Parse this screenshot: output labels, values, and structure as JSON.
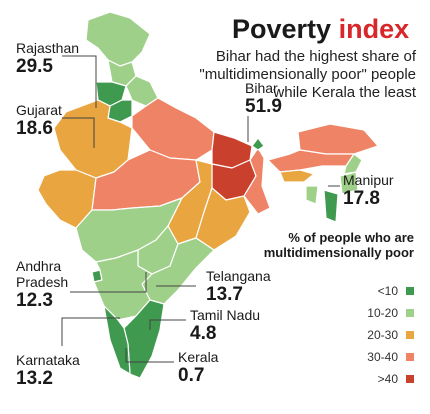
{
  "title": {
    "main": "Poverty",
    "accent": "index"
  },
  "subtitle": "Bihar had the highest share of \"multidimensionally poor\" people while Kerala the least",
  "legend": {
    "title": "% of people who are multidimensionally poor",
    "items": [
      {
        "label": "<10",
        "color": "#3f9a4f"
      },
      {
        "label": "10-20",
        "color": "#9fd08a"
      },
      {
        "label": "20-30",
        "color": "#e9a53f"
      },
      {
        "label": "30-40",
        "color": "#ee8365"
      },
      {
        "label": ">40",
        "color": "#c9402c"
      }
    ]
  },
  "states": {
    "rajasthan": {
      "name": "Rajasthan",
      "value": "29.5"
    },
    "gujarat": {
      "name": "Gujarat",
      "value": "18.6"
    },
    "bihar": {
      "name": "Bihar",
      "value": "51.9"
    },
    "manipur": {
      "name": "Manipur",
      "value": "17.8"
    },
    "andhra": {
      "name": "Andhra Pradesh",
      "value": "12.3"
    },
    "telangana": {
      "name": "Telangana",
      "value": "13.7"
    },
    "tamilnadu": {
      "name": "Tamil Nadu",
      "value": "4.8"
    },
    "karnataka": {
      "name": "Karnataka",
      "value": "13.2"
    },
    "kerala": {
      "name": "Kerala",
      "value": "0.7"
    }
  }
}
